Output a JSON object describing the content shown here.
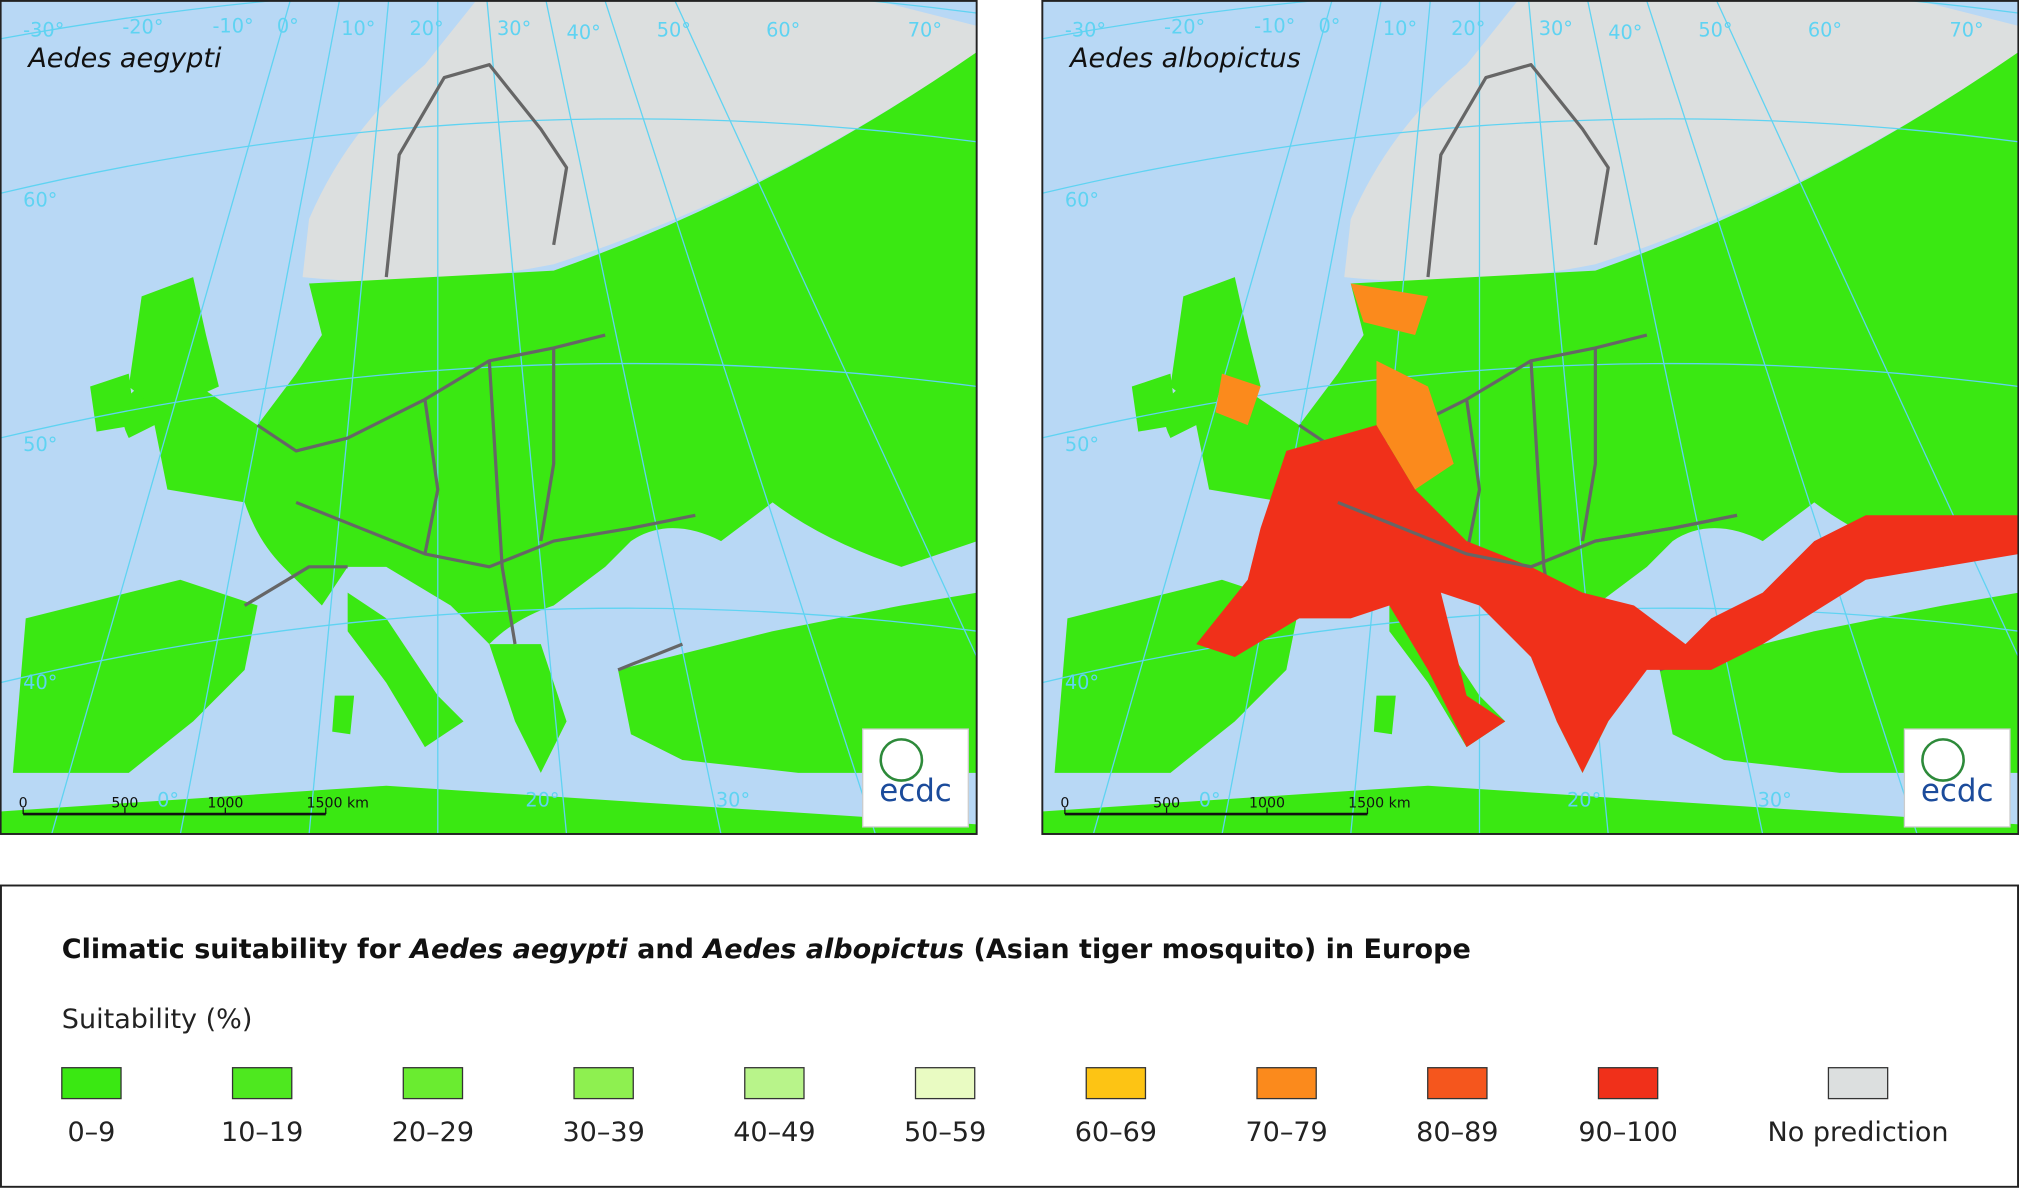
{
  "maps": [
    {
      "title": "Aedes aegypti",
      "graticule_labels": [
        "-30°",
        "-20°",
        "-10°",
        "0°",
        "10°",
        "20°",
        "30°",
        "40°",
        "50°",
        "60°",
        "70°",
        "60°",
        "50°",
        "40°",
        "0°",
        "20°",
        "30°"
      ],
      "scale_labels": [
        "0",
        "500",
        "1000",
        "1500 km"
      ],
      "logo": "ecdc"
    },
    {
      "title": "Aedes albopictus",
      "graticule_labels": [
        "-30°",
        "-20°",
        "-10°",
        "0°",
        "10°",
        "20°",
        "30°",
        "40°",
        "50°",
        "60°",
        "70°",
        "60°",
        "50°",
        "40°",
        "0°",
        "20°",
        "30°"
      ],
      "scale_labels": [
        "0",
        "500",
        "1000",
        "1500 km"
      ],
      "logo": "ecdc"
    }
  ],
  "legend": {
    "title_parts": [
      "Climatic suitability for ",
      "Aedes aegypti",
      " and ",
      "Aedes albopictus",
      " (Asian tiger mosquito) in Europe"
    ],
    "subtitle": "Suitability (%)",
    "items": [
      {
        "label": "0–9",
        "color": "#3ae812"
      },
      {
        "label": "10–19",
        "color": "#4ee81f"
      },
      {
        "label": "20–29",
        "color": "#6aec30"
      },
      {
        "label": "30–39",
        "color": "#8ef050"
      },
      {
        "label": "40–49",
        "color": "#b8f48a"
      },
      {
        "label": "50–59",
        "color": "#e9fbc2"
      },
      {
        "label": "60–69",
        "color": "#fdc414"
      },
      {
        "label": "70–79",
        "color": "#fb8a1c"
      },
      {
        "label": "80–89",
        "color": "#f5561d"
      },
      {
        "label": "90–100",
        "color": "#f0301a"
      },
      {
        "label": "No prediction",
        "color": "#dcdfdf"
      }
    ]
  }
}
